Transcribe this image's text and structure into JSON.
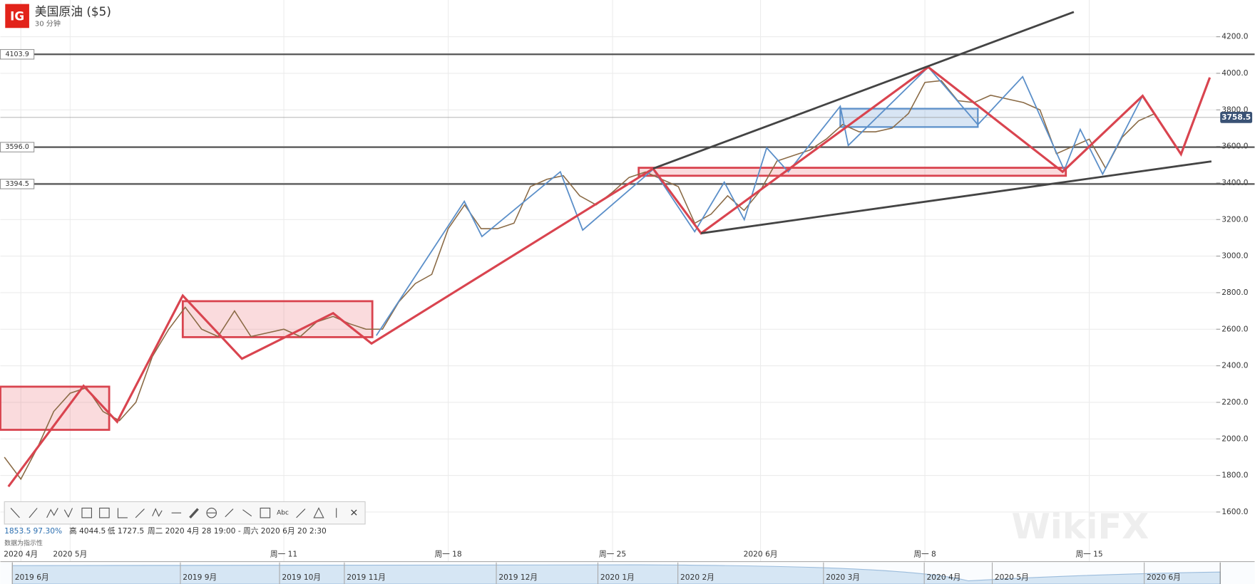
{
  "header": {
    "logo": "IG",
    "title": "美国原油 ($5)",
    "interval": "30 分钟"
  },
  "chart_data": {
    "type": "line",
    "categories": [
      null,
      "2020 4月",
      null,
      null,
      "2020 5月",
      null,
      null,
      null,
      null,
      null,
      null,
      null,
      null,
      null,
      null,
      null,
      null,
      "周一 11",
      null,
      null,
      null,
      null,
      null,
      null,
      null,
      null,
      null,
      "周一 18",
      null,
      null,
      null,
      null,
      null,
      null,
      null,
      null,
      null,
      "周一 25",
      null,
      null,
      null,
      null,
      null,
      null,
      null,
      null,
      "2020 6月",
      null,
      null,
      null,
      null,
      null,
      null,
      null,
      null,
      null,
      "周一 8",
      null,
      null,
      null,
      null,
      null,
      null,
      null,
      null,
      null,
      "周一 15",
      null,
      null,
      null,
      null
    ],
    "series": [
      {
        "color": "#8a6a45",
        "values": [
          1900,
          1780,
          1950,
          2150,
          2250,
          2280,
          2150,
          2100,
          2200,
          2450,
          2600,
          2720,
          2600,
          2560,
          2700,
          2560,
          2580,
          2600,
          2560,
          2640,
          2670,
          2630,
          2600,
          2600,
          2750,
          2850,
          2900,
          3150,
          3280,
          3150,
          3150,
          3180,
          3380,
          3420,
          3440,
          3330,
          3280,
          3350,
          3430,
          3460,
          3420,
          3380,
          3180,
          3230,
          3330,
          3250,
          3360,
          3520,
          3550,
          3580,
          3640,
          3720,
          3680,
          3680,
          3700,
          3780,
          3950,
          3960,
          3850,
          3840,
          3880,
          3860,
          3840,
          3800,
          3560,
          3600,
          3640,
          3480,
          3650,
          3740,
          3780
        ]
      }
    ],
    "ylim": [
      1416,
      4401
    ],
    "yticks": [
      {
        "value": 1600,
        "label": "1600.0"
      },
      {
        "value": 1800,
        "label": "1800.0"
      },
      {
        "value": 2000,
        "label": "2000.0"
      },
      {
        "value": 2200,
        "label": "2200.0"
      },
      {
        "value": 2400,
        "label": "2400.0"
      },
      {
        "value": 2600,
        "label": "2600.0"
      },
      {
        "value": 2800,
        "label": "2800.0"
      },
      {
        "value": 3000,
        "label": "3000.0"
      },
      {
        "value": 3200,
        "label": "3200.0"
      },
      {
        "value": 3400,
        "label": "3400.0"
      },
      {
        "value": 3600,
        "label": "3600.0"
      },
      {
        "value": 3800,
        "label": "3800.0"
      },
      {
        "value": 4000,
        "label": "4000.0"
      },
      {
        "value": 4200,
        "label": "4200.0"
      }
    ],
    "grid": true,
    "price_lines": [
      4103.9,
      {
        "value": 3596,
        "label": "3596.0"
      },
      3394.5
    ],
    "last_price": 3758.5
  },
  "toolbar": {
    "text_tool": "Abc",
    "close": "×"
  },
  "stats": {
    "last": "1853.5",
    "change": "97.30%",
    "high": "高 4044.5",
    "low": "低 1727.5",
    "range": "周二 2020 4月 28 19:00 - 周六 2020 6月 20 2:30",
    "note": "数据为指示性"
  },
  "navigator": [
    "2019 6月",
    "2019 9月",
    "2019 10月",
    "2019 11月",
    "2019 12月",
    "2020 1月",
    "2020 2月",
    "2020 3月",
    "2020 4月",
    "2020 5月",
    "2020 6月"
  ],
  "watermark": "WikiFX"
}
